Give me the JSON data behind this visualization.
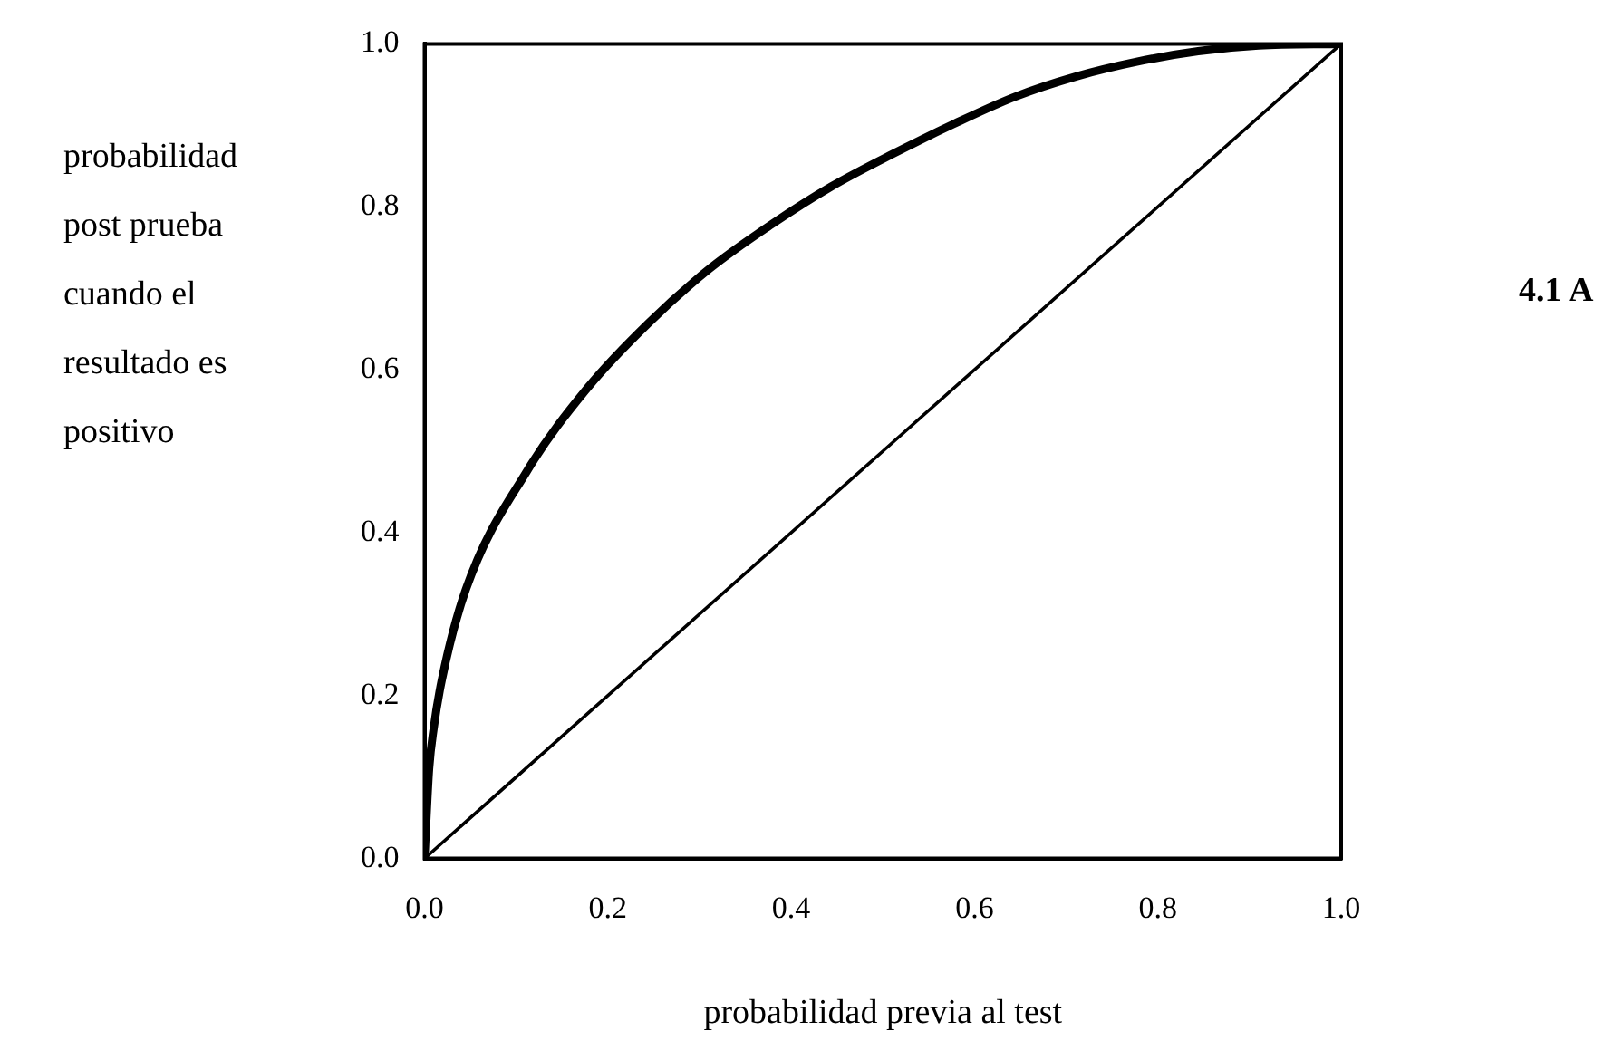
{
  "chart_data": {
    "type": "line",
    "xlabel": "probabilidad previa al test",
    "ylabel": "probabilidad post prueba cuando el resultado es positivo",
    "annotations": [
      "4.1 A"
    ],
    "series": [
      {
        "color": "#000000",
        "x": [
          0,
          0.005,
          0.01,
          0.019,
          0.045,
          0.112,
          0.178,
          0.245,
          0.311,
          0.378,
          0.444,
          0.511,
          0.578,
          0.644,
          0.711,
          0.777,
          0.844,
          0.91,
          1
        ],
        "values": [
          0,
          0.11,
          0.16,
          0.22,
          0.33,
          0.476,
          0.578,
          0.658,
          0.724,
          0.778,
          0.825,
          0.865,
          0.902,
          0.935,
          0.96,
          0.978,
          0.991,
          0.998,
          1
        ]
      },
      {
        "color": "#000000",
        "x": [
          0,
          1
        ],
        "values": [
          0,
          1
        ]
      }
    ],
    "xlim": [
      0,
      1
    ],
    "ylim": [
      0,
      1
    ],
    "xticks": [
      {
        "value": 0,
        "label": "0.0"
      },
      {
        "value": 0.2,
        "label": "0.2"
      },
      {
        "value": 0.4,
        "label": "0.4"
      },
      {
        "value": 0.6,
        "label": "0.6"
      },
      {
        "value": 0.8,
        "label": "0.8"
      },
      {
        "value": 1,
        "label": "1.0"
      }
    ],
    "yticks": [
      {
        "value": 0,
        "label": "0.0"
      },
      {
        "value": 0.2,
        "label": "0.2"
      },
      {
        "value": 0.4,
        "label": "0.4"
      },
      {
        "value": 0.6,
        "label": "0.6"
      },
      {
        "value": 0.8,
        "label": "0.8"
      },
      {
        "value": 1,
        "label": "1.0"
      }
    ],
    "grid": false,
    "legend": false,
    "marker": "none",
    "line_style": "solid"
  }
}
